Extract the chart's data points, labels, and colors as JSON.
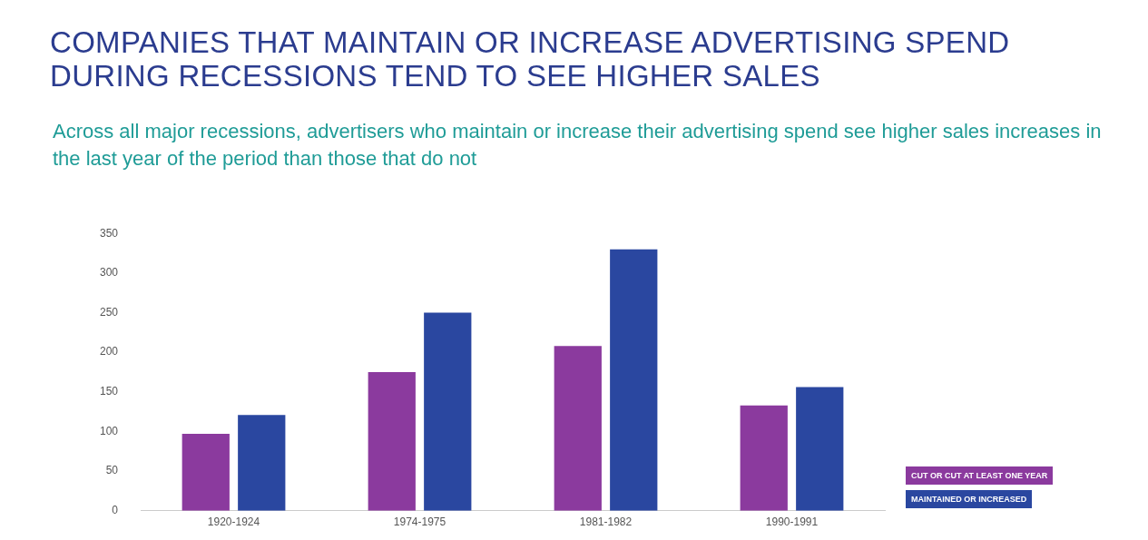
{
  "chart_data": {
    "type": "bar",
    "title": "COMPANIES THAT MAINTAIN OR INCREASE ADVERTISING SPEND DURING RECESSIONS TEND TO SEE HIGHER SALES",
    "subtitle": "Across all major recessions, advertisers who maintain or increase their advertising spend see higher sales increases in the last year of the period than those that do not",
    "categories": [
      "1920-1924",
      "1974-1975",
      "1981-1982",
      "1990-1991"
    ],
    "series": [
      {
        "name": "CUT OR CUT AT LEAST ONE YEAR",
        "color": "#8b3a9e",
        "values": [
          97,
          175,
          208,
          133
        ]
      },
      {
        "name": "MAINTAINED OR INCREASED",
        "color": "#2a47a0",
        "values": [
          121,
          250,
          330,
          156
        ]
      }
    ],
    "ylim": [
      0,
      350
    ],
    "yticks": [
      0,
      50,
      100,
      150,
      200,
      250,
      300,
      350
    ],
    "grid": false,
    "legend": "bottom right"
  }
}
